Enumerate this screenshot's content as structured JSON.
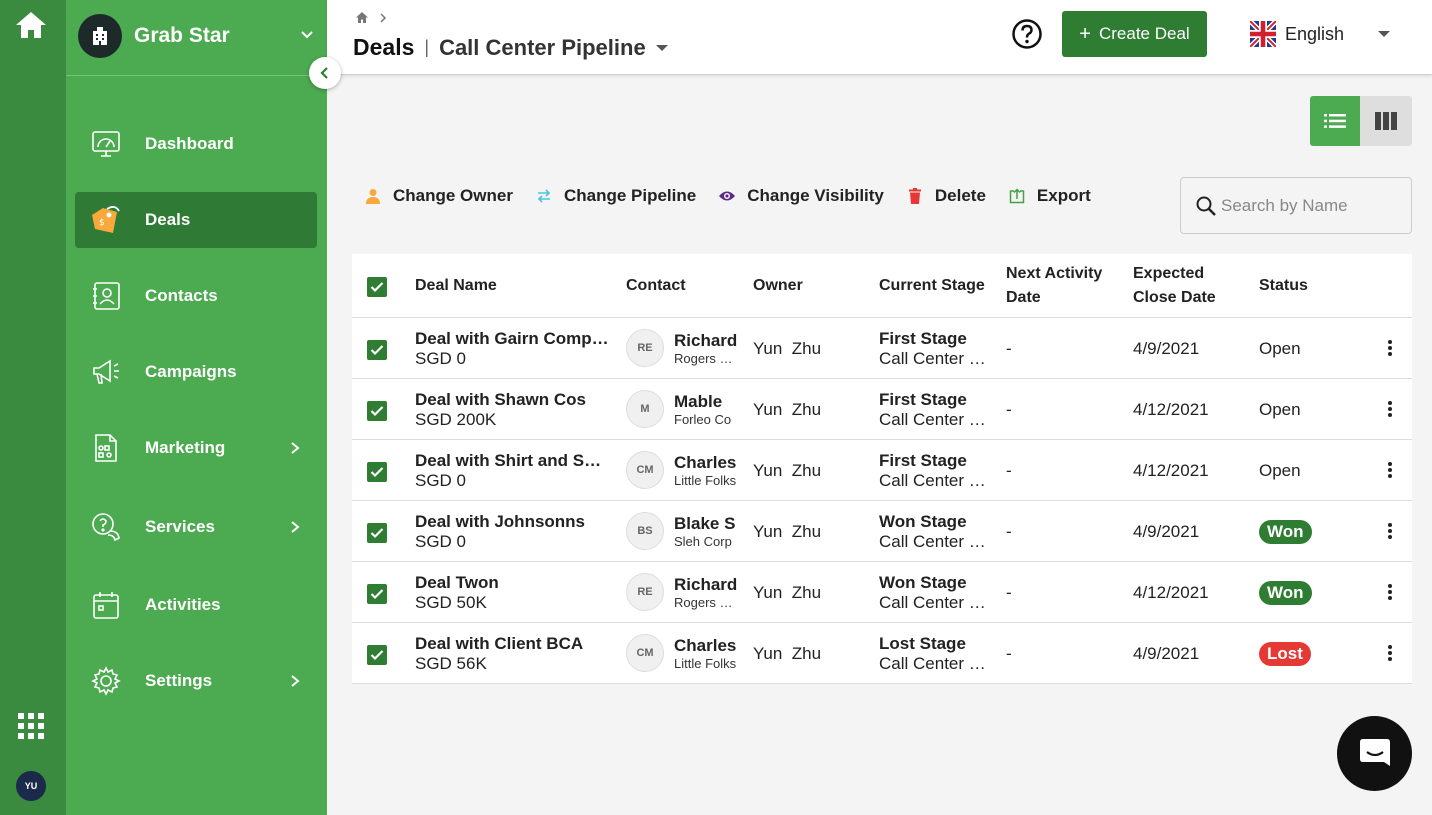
{
  "rail": {
    "avatar_initials": "YU"
  },
  "sidebar": {
    "brand": "Grab Star",
    "items": [
      {
        "label": "Dashboard",
        "icon": "dashboard-icon",
        "active": false,
        "has_children": false
      },
      {
        "label": "Deals",
        "icon": "deals-tag-icon",
        "active": true,
        "has_children": false
      },
      {
        "label": "Contacts",
        "icon": "contacts-icon",
        "active": false,
        "has_children": false
      },
      {
        "label": "Campaigns",
        "icon": "megaphone-icon",
        "active": false,
        "has_children": false
      },
      {
        "label": "Marketing",
        "icon": "marketing-icon",
        "active": false,
        "has_children": true
      },
      {
        "label": "Services",
        "icon": "services-icon",
        "active": false,
        "has_children": true
      },
      {
        "label": "Activities",
        "icon": "calendar-icon",
        "active": false,
        "has_children": false
      },
      {
        "label": "Settings",
        "icon": "gear-icon",
        "active": false,
        "has_children": true
      }
    ]
  },
  "header": {
    "title": "Deals",
    "pipeline": "Call Center Pipeline",
    "create_label": "Create Deal",
    "language": "English"
  },
  "actions": {
    "change_owner": "Change Owner",
    "change_pipeline": "Change Pipeline",
    "change_visibility": "Change Visibility",
    "delete": "Delete",
    "export": "Export"
  },
  "search": {
    "placeholder": "Search by Name"
  },
  "table": {
    "headers": {
      "deal_name": "Deal Name",
      "contact": "Contact",
      "owner": "Owner",
      "current_stage": "Current Stage",
      "next_activity_1": "Next Activity",
      "next_activity_2": "Date",
      "expected_close_1": "Expected",
      "expected_close_2": "Close Date",
      "status": "Status"
    },
    "rows": [
      {
        "deal": "Deal with Gairn Company",
        "amount": "SGD 0",
        "initials": "RE",
        "contact": "Richard",
        "company": "Rogers Farm",
        "owner": "Yun  Zhu",
        "stage": "First Stage",
        "pipeline": "Call Center Pipeline",
        "next_activity": "-",
        "close_date": "4/9/2021",
        "status": "Open",
        "status_type": "text"
      },
      {
        "deal": "Deal with Shawn Cos",
        "amount": "SGD 200K",
        "initials": "M",
        "contact": "Mable",
        "company": "Forleo Co",
        "owner": "Yun  Zhu",
        "stage": "First Stage",
        "pipeline": "Call Center Pipeline",
        "next_activity": "-",
        "close_date": "4/12/2021",
        "status": "Open",
        "status_type": "text"
      },
      {
        "deal": "Deal with Shirt and Shoes",
        "amount": "SGD 0",
        "initials": "CM",
        "contact": "Charles",
        "company": "Little Folks",
        "owner": "Yun  Zhu",
        "stage": "First Stage",
        "pipeline": "Call Center Pipeline",
        "next_activity": "-",
        "close_date": "4/12/2021",
        "status": "Open",
        "status_type": "text"
      },
      {
        "deal": "Deal with Johnsonns",
        "amount": "SGD 0",
        "initials": "BS",
        "contact": "Blake S",
        "company": "Sleh Corp",
        "owner": "Yun  Zhu",
        "stage": "Won Stage",
        "pipeline": "Call Center Pipeline",
        "next_activity": "-",
        "close_date": "4/9/2021",
        "status": "Won",
        "status_type": "won"
      },
      {
        "deal": "Deal Twon",
        "amount": "SGD 50K",
        "initials": "RE",
        "contact": "Richard",
        "company": "Rogers Farm",
        "owner": "Yun  Zhu",
        "stage": "Won Stage",
        "pipeline": "Call Center Pipeline",
        "next_activity": "-",
        "close_date": "4/12/2021",
        "status": "Won",
        "status_type": "won"
      },
      {
        "deal": "Deal with Client BCA",
        "amount": "SGD 56K",
        "initials": "CM",
        "contact": "Charles",
        "company": "Little Folks",
        "owner": "Yun  Zhu",
        "stage": "Lost Stage",
        "pipeline": "Call Center Pipeline",
        "next_activity": "-",
        "close_date": "4/9/2021",
        "status": "Lost",
        "status_type": "lost"
      }
    ]
  },
  "colors": {
    "sidebar": "#4caa50",
    "rail": "#3a8a3f",
    "active": "#2f7a34",
    "won": "#2e7d32",
    "lost": "#e53935",
    "primary": "#2e7d32"
  }
}
